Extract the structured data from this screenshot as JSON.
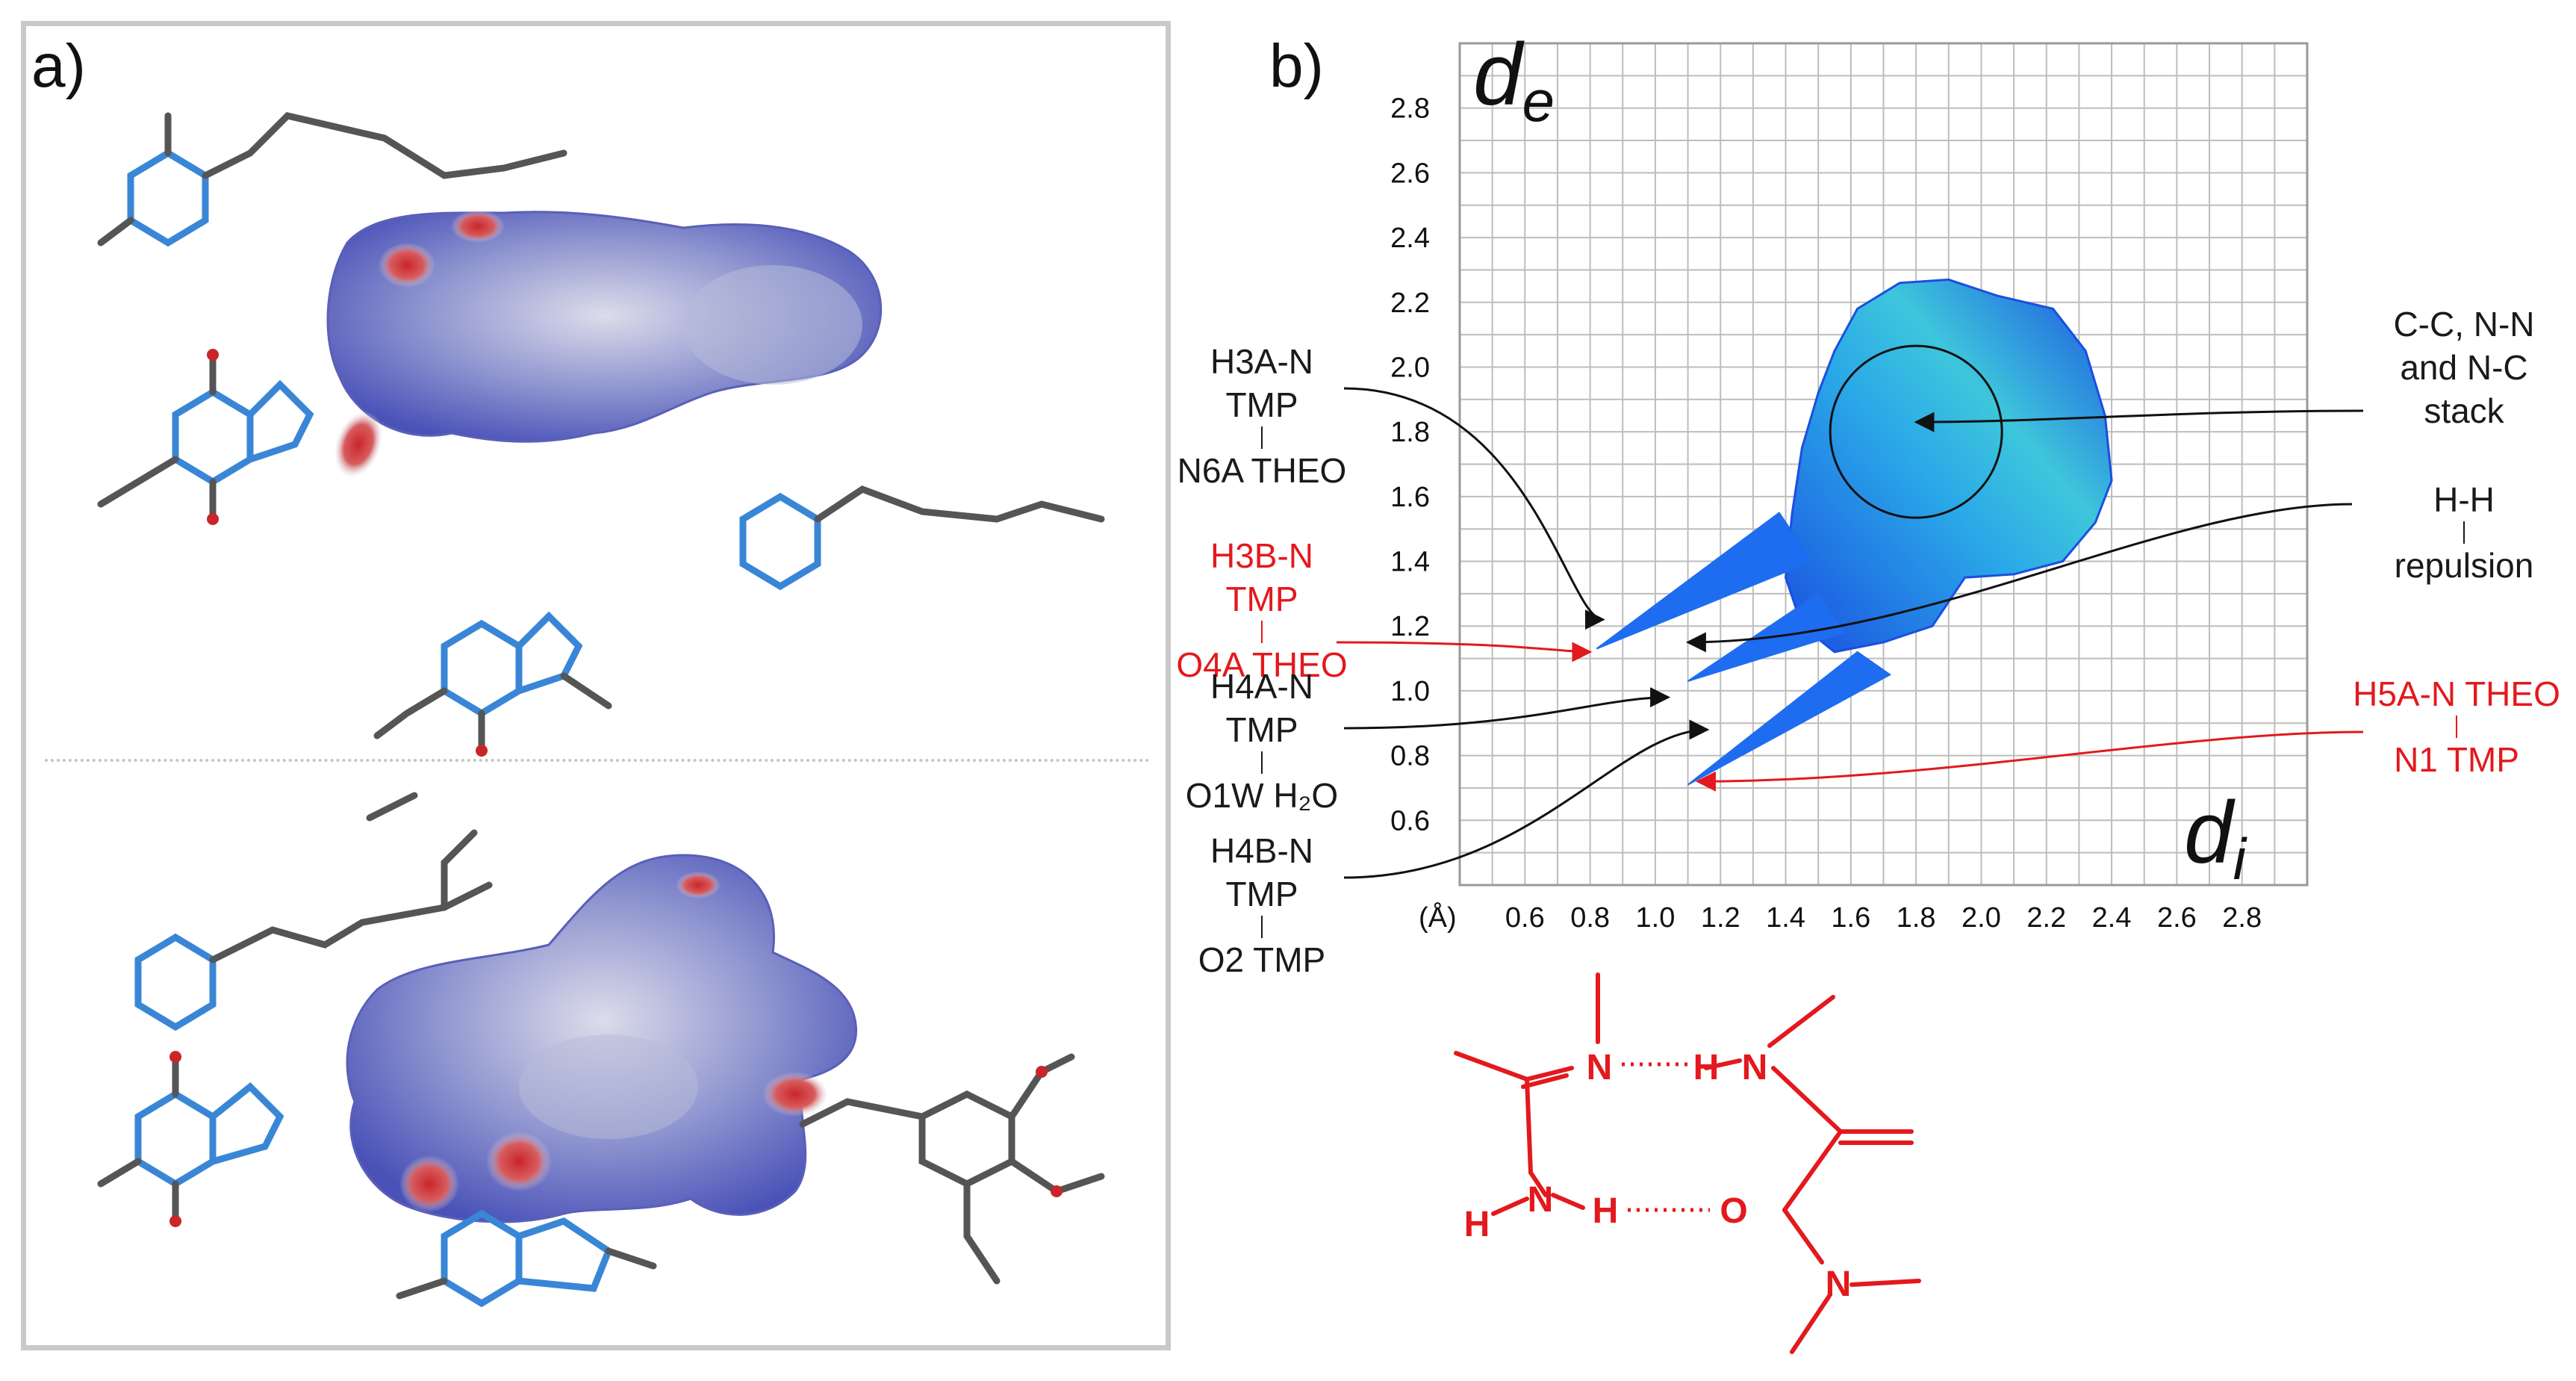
{
  "panel_a_label": "a)",
  "panel_b_label": "b)",
  "chart_data": {
    "type": "fingerprint-plot",
    "xlabel": "d",
    "xlabel_sub": "i",
    "ylabel": "d",
    "ylabel_sub": "e",
    "unit_label": "(Å)",
    "xlim": [
      0.4,
      3.0
    ],
    "ylim": [
      0.4,
      3.0
    ],
    "x_ticks": [
      "0.6",
      "0.8",
      "1.0",
      "1.2",
      "1.4",
      "1.6",
      "1.8",
      "2.0",
      "2.2",
      "2.4",
      "2.6",
      "2.8"
    ],
    "y_ticks": [
      "2.8",
      "2.6",
      "2.4",
      "2.2",
      "2.0",
      "1.8",
      "1.6",
      "1.4",
      "1.2",
      "1.0",
      "0.8",
      "0.6"
    ],
    "grid": true,
    "spikes": [
      {
        "tip": [
          0.82,
          1.13
        ],
        "color": "#1e6cf0"
      },
      {
        "tip": [
          1.1,
          1.03
        ],
        "color": "#1e6cf0"
      },
      {
        "tip": [
          1.1,
          0.71
        ],
        "color": "#1e6cf0"
      }
    ],
    "stack_region_center": [
      1.8,
      1.8
    ],
    "annotations": [
      {
        "line1": "H3A-N TMP",
        "line2": "N6A THEO",
        "color": "#1a1a1a",
        "target": [
          0.84,
          1.22
        ]
      },
      {
        "line1": "H3B-N TMP",
        "line2": "O4A THEO",
        "color": "#e3191d",
        "target": [
          0.8,
          1.12
        ]
      },
      {
        "line1": "H4A-N TMP",
        "line2": "O1W H₂O",
        "color": "#1a1a1a",
        "target": [
          1.04,
          0.98
        ]
      },
      {
        "line1": "H4B-N TMP",
        "line2": "O2 TMP",
        "color": "#1a1a1a",
        "target": [
          1.16,
          0.88
        ]
      },
      {
        "line1": "C-C, N-N",
        "line2": "and N-C",
        "line3": "stack",
        "color": "#1a1a1a",
        "target": [
          1.8,
          1.83
        ]
      },
      {
        "line1": "H-H",
        "line2": "repulsion",
        "color": "#1a1a1a",
        "target": [
          1.1,
          1.15
        ]
      },
      {
        "line1": "H5A-N THEO",
        "line2": "N1 TMP",
        "color": "#e3191d",
        "target": [
          1.13,
          0.72
        ]
      }
    ]
  },
  "scheme": {
    "color": "#e3191d",
    "atoms": [
      "N",
      "H",
      "N",
      "H",
      "N",
      "H",
      "O",
      "N"
    ]
  }
}
